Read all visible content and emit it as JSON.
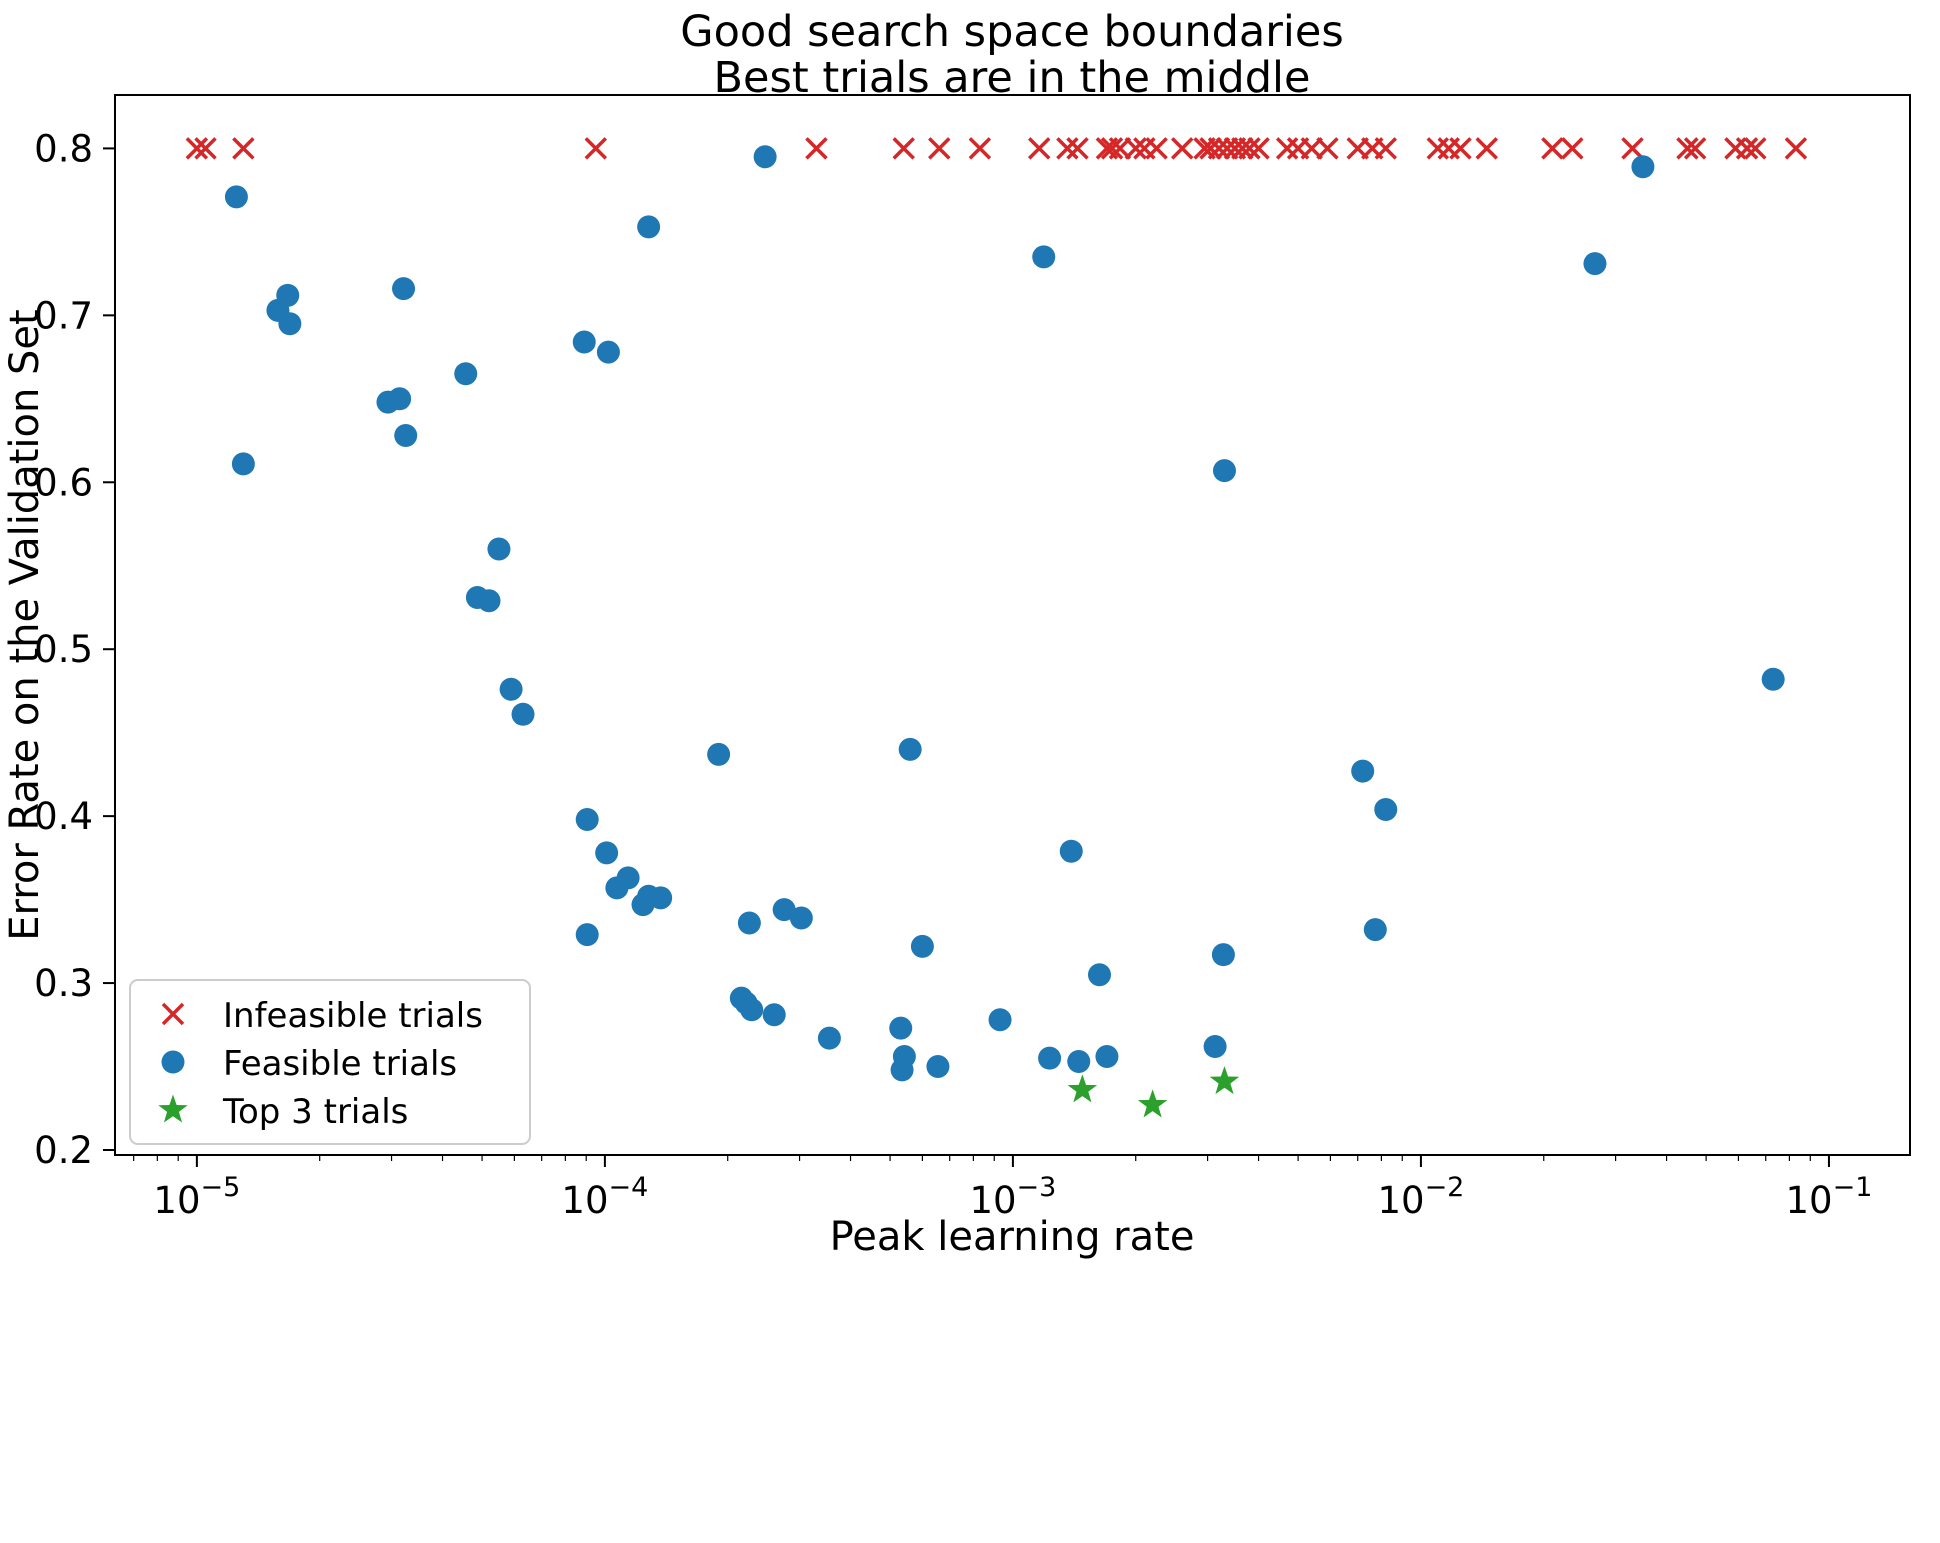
{
  "figure": {
    "title_line1": "Good search space boundaries",
    "title_line2": "Best trials are in the middle",
    "xlabel": "Peak learning rate",
    "ylabel": "Error Rate on the Validation Set"
  },
  "legend": {
    "items": [
      {
        "label": "Infeasible trials",
        "marker": "x",
        "color": "#d62728"
      },
      {
        "label": "Feasible trials",
        "marker": "circle",
        "color": "#1f77b4"
      },
      {
        "label": "Top 3 trials",
        "marker": "star",
        "color": "#2ca02c"
      }
    ]
  },
  "chart_data": {
    "type": "scatter",
    "title": "Good search space boundaries\nBest trials are in the middle",
    "xlabel": "Peak learning rate",
    "ylabel": "Error Rate on the Validation Set",
    "x_scale": "log",
    "y_scale": "linear",
    "xlim": [
      6.3e-06,
      0.158
    ],
    "ylim": [
      0.197,
      0.832
    ],
    "x_tick_exponents": [
      -5,
      -4,
      -3,
      -2,
      -1
    ],
    "x_tick_labels": [
      "10⁻⁵",
      "10⁻⁴",
      "10⁻³",
      "10⁻²",
      "10⁻¹"
    ],
    "y_ticks": [
      0.2,
      0.3,
      0.4,
      0.5,
      0.6,
      0.7,
      0.8
    ],
    "y_tick_labels": [
      "0.2",
      "0.3",
      "0.4",
      "0.5",
      "0.6",
      "0.7",
      "0.8"
    ],
    "grid": false,
    "legend_position": "lower left",
    "series": [
      {
        "name": "Infeasible trials",
        "marker": "x",
        "color": "#d62728",
        "points": [
          [
            1e-05,
            0.8
          ],
          [
            1.05e-05,
            0.8
          ],
          [
            1.3e-05,
            0.8
          ],
          [
            9.5e-05,
            0.8
          ],
          [
            0.00033,
            0.8
          ],
          [
            0.00054,
            0.8
          ],
          [
            0.00066,
            0.8
          ],
          [
            0.00083,
            0.8
          ],
          [
            0.00116,
            0.8
          ],
          [
            0.00136,
            0.8
          ],
          [
            0.00144,
            0.8
          ],
          [
            0.0017,
            0.8
          ],
          [
            0.00175,
            0.8
          ],
          [
            0.00183,
            0.8
          ],
          [
            0.002,
            0.8
          ],
          [
            0.0021,
            0.8
          ],
          [
            0.00225,
            0.8
          ],
          [
            0.0026,
            0.8
          ],
          [
            0.00295,
            0.8
          ],
          [
            0.00305,
            0.8
          ],
          [
            0.0032,
            0.8
          ],
          [
            0.00335,
            0.8
          ],
          [
            0.0035,
            0.8
          ],
          [
            0.00365,
            0.8
          ],
          [
            0.0038,
            0.8
          ],
          [
            0.004,
            0.8
          ],
          [
            0.0047,
            0.8
          ],
          [
            0.005,
            0.8
          ],
          [
            0.0054,
            0.8
          ],
          [
            0.0059,
            0.8
          ],
          [
            0.007,
            0.8
          ],
          [
            0.0076,
            0.8
          ],
          [
            0.0082,
            0.8
          ],
          [
            0.011,
            0.8
          ],
          [
            0.0117,
            0.8
          ],
          [
            0.0125,
            0.8
          ],
          [
            0.0145,
            0.8
          ],
          [
            0.021,
            0.8
          ],
          [
            0.0235,
            0.8
          ],
          [
            0.033,
            0.8
          ],
          [
            0.045,
            0.8
          ],
          [
            0.047,
            0.8
          ],
          [
            0.059,
            0.8
          ],
          [
            0.063,
            0.8
          ],
          [
            0.066,
            0.8
          ],
          [
            0.083,
            0.8
          ]
        ]
      },
      {
        "name": "Feasible trials",
        "marker": "circle",
        "color": "#1f77b4",
        "points": [
          [
            1.25e-05,
            0.771
          ],
          [
            1.3e-05,
            0.611
          ],
          [
            1.58e-05,
            0.703
          ],
          [
            1.67e-05,
            0.712
          ],
          [
            1.69e-05,
            0.695
          ],
          [
            2.94e-05,
            0.648
          ],
          [
            3.14e-05,
            0.65
          ],
          [
            3.21e-05,
            0.716
          ],
          [
            3.25e-05,
            0.628
          ],
          [
            4.56e-05,
            0.665
          ],
          [
            4.87e-05,
            0.531
          ],
          [
            5.2e-05,
            0.529
          ],
          [
            5.5e-05,
            0.56
          ],
          [
            5.89e-05,
            0.476
          ],
          [
            6.3e-05,
            0.461
          ],
          [
            9.05e-05,
            0.398
          ],
          [
            8.9e-05,
            0.684
          ],
          [
            0.000102,
            0.678
          ],
          [
            9.05e-05,
            0.329
          ],
          [
            0.000101,
            0.378
          ],
          [
            0.000107,
            0.357
          ],
          [
            0.000114,
            0.363
          ],
          [
            0.000128,
            0.352
          ],
          [
            0.000124,
            0.347
          ],
          [
            0.000137,
            0.351
          ],
          [
            0.00019,
            0.437
          ],
          [
            0.000216,
            0.291
          ],
          [
            0.000222,
            0.288
          ],
          [
            0.000229,
            0.284
          ],
          [
            0.000226,
            0.336
          ],
          [
            0.00026,
            0.281
          ],
          [
            0.000275,
            0.344
          ],
          [
            0.000303,
            0.339
          ],
          [
            0.000128,
            0.753
          ],
          [
            0.000355,
            0.267
          ],
          [
            0.000535,
            0.248
          ],
          [
            0.000542,
            0.256
          ],
          [
            0.000531,
            0.273
          ],
          [
            0.000655,
            0.25
          ],
          [
            0.000247,
            0.795
          ],
          [
            0.0006,
            0.322
          ],
          [
            0.00056,
            0.44
          ],
          [
            0.00093,
            0.278
          ],
          [
            0.00119,
            0.735
          ],
          [
            0.00123,
            0.255
          ],
          [
            0.00139,
            0.379
          ],
          [
            0.00145,
            0.253
          ],
          [
            0.00163,
            0.305
          ],
          [
            0.0017,
            0.256
          ],
          [
            0.0033,
            0.607
          ],
          [
            0.00313,
            0.262
          ],
          [
            0.00328,
            0.317
          ],
          [
            0.0072,
            0.427
          ],
          [
            0.0082,
            0.404
          ],
          [
            0.00773,
            0.332
          ],
          [
            0.0267,
            0.731
          ],
          [
            0.035,
            0.789
          ],
          [
            0.073,
            0.482
          ]
        ]
      },
      {
        "name": "Top 3 trials",
        "marker": "star",
        "color": "#2ca02c",
        "points": [
          [
            0.00148,
            0.236
          ],
          [
            0.0022,
            0.227
          ],
          [
            0.0033,
            0.241
          ]
        ]
      }
    ]
  }
}
